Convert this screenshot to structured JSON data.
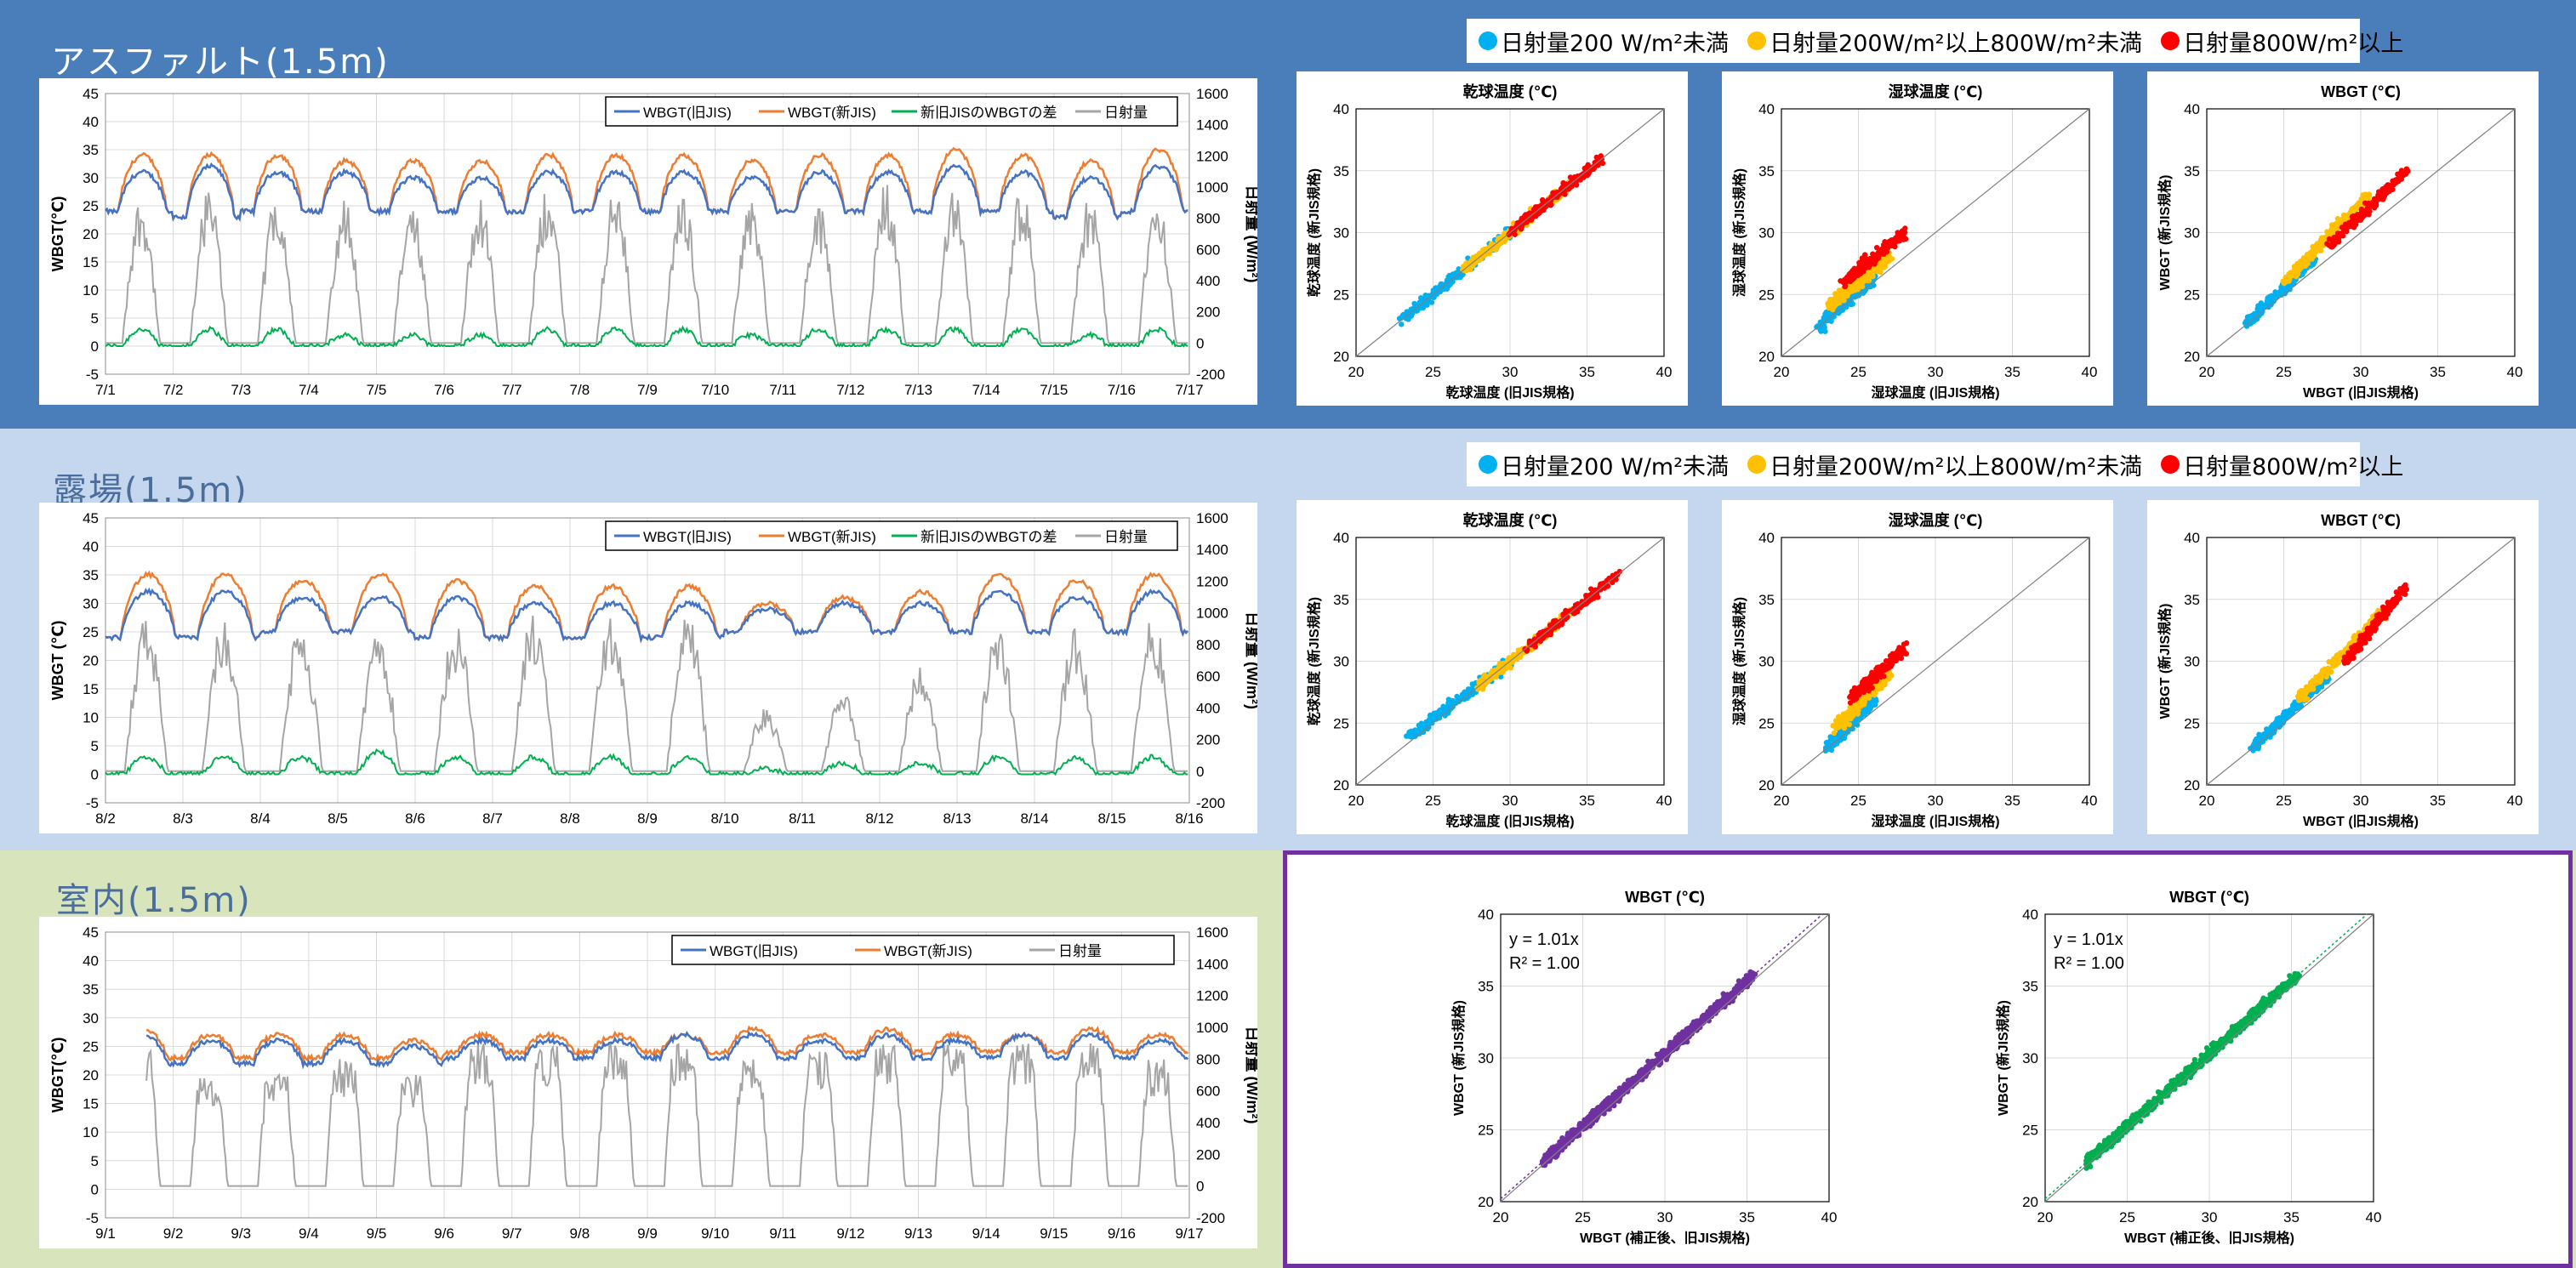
{
  "sections": [
    {
      "id": "asphalt",
      "title": "アスファルト(1.5m)",
      "timeseries": {
        "ylabel": "WBGT(℃)",
        "y2label": "日射量 (W/m²)",
        "legend": [
          "WBGT(旧JIS)",
          "WBGT(新JIS)",
          "新旧JISのWBGTの差",
          "日射量"
        ],
        "xlabels": [
          "7/1",
          "7/2",
          "7/3",
          "7/4",
          "7/5",
          "7/6",
          "7/7",
          "7/8",
          "7/9",
          "7/10",
          "7/11",
          "7/12",
          "7/13",
          "7/14",
          "7/15",
          "7/16",
          "7/17"
        ]
      },
      "scatter_legend": [
        "日射量200 W/m²未満",
        "日射量200W/m²以上800W/m²未満",
        "日射量800W/m²以上"
      ],
      "scatters": [
        {
          "title": "乾球温度 (℃)",
          "xlabel": "乾球温度 (旧JIS規格)",
          "ylabel": "乾球温度 (新JIS規格)"
        },
        {
          "title": "湿球温度 (℃)",
          "xlabel": "湿球温度 (旧JIS規格)",
          "ylabel": "湿球温度 (新JIS規格)"
        },
        {
          "title": "WBGT (℃)",
          "xlabel": "WBGT (旧JIS規格)",
          "ylabel": "WBGT (新JIS規格)"
        }
      ]
    },
    {
      "id": "open",
      "title": "露場(1.5m)",
      "timeseries": {
        "ylabel": "WBGT (℃)",
        "y2label": "日射量 (W/m²)",
        "legend": [
          "WBGT(旧JIS)",
          "WBGT(新JIS)",
          "新旧JISのWBGTの差",
          "日射量"
        ],
        "xlabels": [
          "8/2",
          "8/3",
          "8/4",
          "8/5",
          "8/6",
          "8/7",
          "8/8",
          "8/9",
          "8/10",
          "8/11",
          "8/12",
          "8/13",
          "8/14",
          "8/15",
          "8/16"
        ]
      },
      "scatter_legend": [
        "日射量200 W/m²未満",
        "日射量200W/m²以上800W/m²未満",
        "日射量800W/m²以上"
      ],
      "scatters": [
        {
          "title": "乾球温度 (℃)",
          "xlabel": "乾球温度 (旧JIS規格)",
          "ylabel": "乾球温度 (新JIS規格)"
        },
        {
          "title": "湿球温度 (℃)",
          "xlabel": "湿球温度 (旧JIS規格)",
          "ylabel": "湿球温度 (新JIS規格)"
        },
        {
          "title": "WBGT (℃)",
          "xlabel": "WBGT (旧JIS規格)",
          "ylabel": "WBGT (新JIS規格)"
        }
      ]
    },
    {
      "id": "indoor",
      "title": "室内(1.5m)",
      "timeseries": {
        "ylabel": "WBGT(℃)",
        "y2label": "日射量 (W/m²)",
        "legend": [
          "WBGT(旧JIS)",
          "WBGT(新JIS)",
          "日射量"
        ],
        "xlabels": [
          "9/1",
          "9/2",
          "9/3",
          "9/4",
          "9/5",
          "9/6",
          "9/7",
          "9/8",
          "9/9",
          "9/10",
          "9/11",
          "9/12",
          "9/13",
          "9/14",
          "9/15",
          "9/16",
          "9/17"
        ]
      },
      "scatters": [
        {
          "title": "WBGT (℃)",
          "xlabel": "WBGT (補正後、旧JIS規格)",
          "ylabel": "WBGT (新JIS規格)",
          "eq": "y = 1.01x",
          "r2": "R² = 1.00",
          "color": "#7030a0"
        },
        {
          "title": "WBGT (℃)",
          "xlabel": "WBGT (補正後、旧JIS規格)",
          "ylabel": "WBGT (新JIS規格)",
          "eq": "y = 1.01x",
          "r2": "R² = 1.00",
          "color": "#00b050"
        }
      ]
    }
  ],
  "colors": {
    "old_jis": "#4472c4",
    "new_jis": "#ed7d31",
    "diff": "#00b050",
    "solar": "#a5a5a5",
    "low": "#00b0f0",
    "mid": "#ffc000",
    "high": "#ff0000"
  },
  "chart_data": [
    {
      "type": "line",
      "section": "アスファルト(1.5m)",
      "x": [
        "7/1",
        "7/2",
        "7/3",
        "7/4",
        "7/5",
        "7/6",
        "7/7",
        "7/8",
        "7/9",
        "7/10",
        "7/11",
        "7/12",
        "7/13",
        "7/14",
        "7/15",
        "7/16",
        "7/17"
      ],
      "series": [
        {
          "name": "WBGT(旧JIS)",
          "daily_max": [
            31,
            32,
            31,
            31,
            30,
            30,
            31,
            31,
            31,
            30,
            31,
            31,
            32,
            31,
            30,
            32
          ],
          "daily_min": [
            24,
            23,
            24,
            24,
            24,
            24,
            24,
            24,
            24,
            24,
            24,
            24,
            24,
            24,
            23,
            24
          ]
        },
        {
          "name": "WBGT(新JIS)",
          "daily_max": [
            34,
            34,
            34,
            33,
            33,
            33,
            34,
            34,
            34,
            33,
            34,
            34,
            35,
            34,
            33,
            35
          ],
          "daily_min": [
            24,
            23,
            24,
            24,
            24,
            24,
            24,
            24,
            24,
            24,
            24,
            24,
            24,
            24,
            23,
            24
          ]
        },
        {
          "name": "新旧JISのWBGTの差",
          "daily_max": [
            3,
            3,
            3,
            2,
            2,
            2,
            3,
            3,
            3,
            2,
            3,
            3,
            3,
            3,
            2,
            3
          ]
        },
        {
          "name": "日射量",
          "daily_max": [
            950,
            1000,
            1000,
            950,
            900,
            950,
            1000,
            1000,
            1000,
            950,
            900,
            1050,
            1000,
            1000,
            950,
            1000
          ]
        }
      ],
      "ylim": [
        -5,
        45
      ],
      "y2lim": [
        -200,
        1600
      ]
    },
    {
      "type": "line",
      "section": "露場(1.5m)",
      "x": [
        "8/2",
        "8/3",
        "8/4",
        "8/5",
        "8/6",
        "8/7",
        "8/8",
        "8/9",
        "8/10",
        "8/11",
        "8/12",
        "8/13",
        "8/14",
        "8/15",
        "8/16"
      ],
      "series": [
        {
          "name": "WBGT(旧JIS)",
          "daily_max": [
            32,
            32,
            31,
            31,
            31,
            30,
            30,
            30,
            29,
            30,
            30,
            32,
            31,
            32
          ],
          "daily_min": [
            24,
            24,
            25,
            25,
            24,
            24,
            24,
            24,
            25,
            25,
            25,
            25,
            25,
            25
          ]
        },
        {
          "name": "WBGT(新JIS)",
          "daily_max": [
            35,
            35,
            34,
            35,
            34,
            33,
            33,
            33,
            30,
            31,
            32,
            35,
            34,
            35
          ],
          "daily_min": [
            24,
            24,
            25,
            25,
            24,
            24,
            24,
            24,
            25,
            25,
            25,
            25,
            25,
            25
          ]
        },
        {
          "name": "新旧JISのWBGTの差",
          "daily_max": [
            3,
            3,
            3,
            4,
            3,
            3,
            3,
            3,
            1,
            2,
            2,
            3,
            3,
            3
          ]
        },
        {
          "name": "日射量",
          "daily_max": [
            1000,
            1000,
            950,
            950,
            950,
            1000,
            1000,
            1000,
            400,
            500,
            700,
            950,
            900,
            1000
          ]
        }
      ],
      "ylim": [
        -5,
        45
      ],
      "y2lim": [
        -200,
        1600
      ]
    },
    {
      "type": "line",
      "section": "室内(1.5m)",
      "x": [
        "9/1",
        "9/2",
        "9/3",
        "9/4",
        "9/5",
        "9/6",
        "9/7",
        "9/8",
        "9/9",
        "9/10",
        "9/11",
        "9/12",
        "9/13",
        "9/14",
        "9/15",
        "9/16",
        "9/17"
      ],
      "series": [
        {
          "name": "WBGT(旧JIS)",
          "daily_max": [
            27,
            26,
            26,
            26,
            25,
            26,
            26,
            26,
            27,
            27,
            26,
            27,
            26,
            27,
            27,
            26
          ],
          "daily_min": [
            22,
            22,
            22,
            22,
            22,
            23,
            23,
            23,
            23,
            23,
            23,
            23,
            23,
            23,
            23,
            23
          ]
        },
        {
          "name": "WBGT(新JIS)",
          "daily_max": [
            28,
            27,
            27,
            27,
            26,
            27,
            27,
            27,
            27,
            28,
            27,
            28,
            27,
            27,
            28,
            27
          ],
          "daily_min": [
            23,
            23,
            23,
            23,
            23,
            24,
            24,
            24,
            24,
            24,
            24,
            24,
            24,
            24,
            24,
            24
          ]
        },
        {
          "name": "日射量",
          "daily_max": [
            900,
            700,
            750,
            800,
            700,
            900,
            900,
            900,
            900,
            800,
            850,
            900,
            900,
            900,
            900,
            800
          ]
        }
      ],
      "ylim": [
        -5,
        45
      ],
      "y2lim": [
        -200,
        1600
      ]
    },
    {
      "type": "scatter",
      "section": "アスファルト(1.5m)",
      "panels": [
        "乾球温度",
        "湿球温度",
        "WBGT"
      ],
      "xlim": [
        20,
        40
      ],
      "ylim": [
        20,
        40
      ],
      "groups": [
        "日射量200 W/m²未満",
        "日射量200W/m²以上800W/m²未満",
        "日射量800W/m²以上"
      ],
      "ranges_x": {
        "乾球温度": [
          [
            23,
            30
          ],
          [
            27,
            34
          ],
          [
            30,
            36
          ]
        ],
        "湿球温度": [
          [
            22.5,
            26
          ],
          [
            23,
            27
          ],
          [
            24,
            28
          ]
        ],
        "WBGT": [
          [
            22.5,
            27
          ],
          [
            25,
            30.5
          ],
          [
            28,
            33
          ]
        ]
      },
      "ranges_y": {
        "乾球温度": [
          [
            23,
            30
          ],
          [
            27,
            34
          ],
          [
            30,
            36
          ]
        ],
        "湿球温度": [
          [
            22.5,
            26.5
          ],
          [
            24,
            28
          ],
          [
            26,
            30
          ]
        ],
        "WBGT": [
          [
            22.5,
            28
          ],
          [
            26,
            33
          ],
          [
            29,
            35
          ]
        ]
      }
    },
    {
      "type": "scatter",
      "section": "露場(1.5m)",
      "panels": [
        "乾球温度",
        "湿球温度",
        "WBGT"
      ],
      "xlim": [
        20,
        40
      ],
      "ylim": [
        20,
        40
      ],
      "groups": [
        "日射量200 W/m²未満",
        "日射量200W/m²以上800W/m²未満",
        "日射量800W/m²以上"
      ],
      "ranges_x": {
        "乾球温度": [
          [
            23.5,
            30
          ],
          [
            28,
            34
          ],
          [
            31,
            37
          ]
        ],
        "湿球温度": [
          [
            23,
            26
          ],
          [
            23.5,
            27
          ],
          [
            24.5,
            28
          ]
        ],
        "WBGT": [
          [
            23,
            28
          ],
          [
            26,
            31.5
          ],
          [
            29,
            33
          ]
        ]
      },
      "ranges_y": {
        "乾球温度": [
          [
            24,
            30
          ],
          [
            28,
            34
          ],
          [
            31,
            37
          ]
        ],
        "湿球温度": [
          [
            23,
            27
          ],
          [
            24.5,
            29
          ],
          [
            27,
            31
          ]
        ],
        "WBGT": [
          [
            23,
            29
          ],
          [
            27,
            34
          ],
          [
            30,
            36
          ]
        ]
      }
    },
    {
      "type": "scatter",
      "section": "室内(1.5m)",
      "panels": [
        "WBGT",
        "WBGT"
      ],
      "xlim": [
        20,
        40
      ],
      "ylim": [
        20,
        40
      ],
      "fit": "y = 1.01x",
      "r2": 1.0,
      "range": [
        22.5,
        36
      ]
    }
  ]
}
